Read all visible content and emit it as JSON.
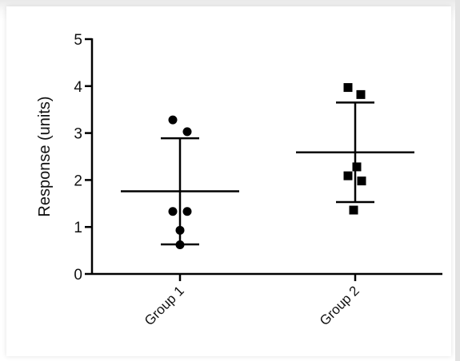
{
  "chart_data": {
    "type": "scatter",
    "title": "",
    "xlabel": "",
    "ylabel": "Response (units)",
    "ylim": [
      0,
      5
    ],
    "yticks": [
      0,
      1,
      2,
      3,
      4,
      5
    ],
    "categories": [
      "Group 1",
      "Group 2"
    ],
    "series": [
      {
        "category": "Group 1",
        "marker": "circle",
        "points": [
          3.28,
          3.03,
          1.33,
          1.33,
          0.93,
          0.62
        ],
        "mean": 1.76,
        "error_low": 0.63,
        "error_high": 2.89
      },
      {
        "category": "Group 2",
        "marker": "square",
        "points": [
          3.97,
          3.82,
          2.28,
          2.09,
          1.98,
          1.36
        ],
        "mean": 2.59,
        "error_low": 1.53,
        "error_high": 3.65
      }
    ],
    "grid": false,
    "legend": "none",
    "color": "#000000"
  }
}
